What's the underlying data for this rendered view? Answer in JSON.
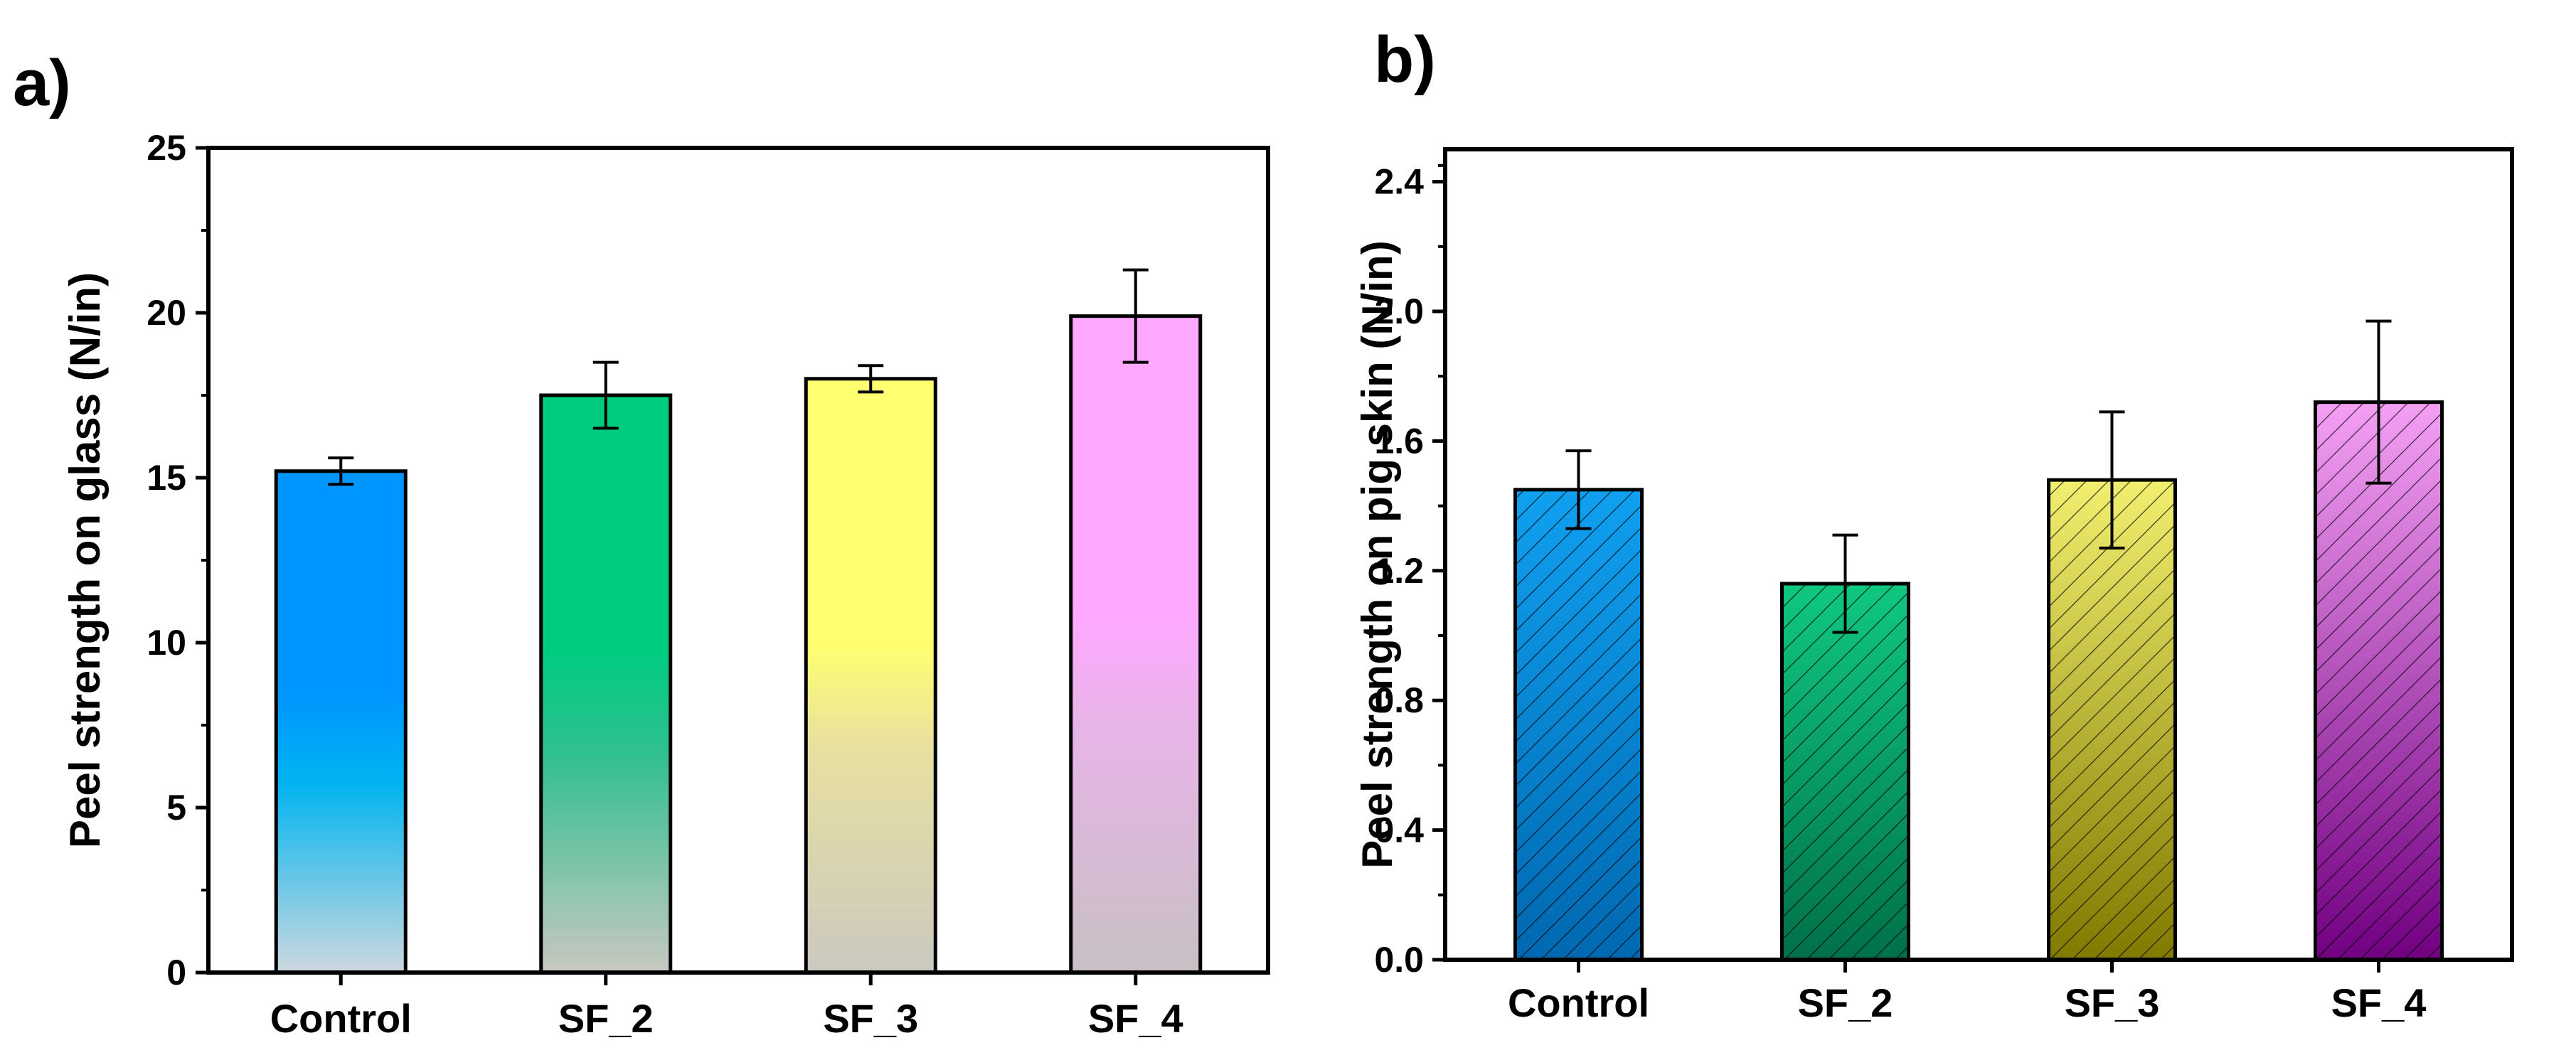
{
  "chart_data": [
    {
      "id": "a",
      "panel_label": "a)",
      "type": "bar",
      "categories": [
        "Control",
        "SF_2",
        "SF_3",
        "SF_4"
      ],
      "values": [
        15.2,
        17.5,
        18.0,
        19.9
      ],
      "errors": [
        0.4,
        1.0,
        0.4,
        1.4
      ],
      "ylabel": "Peel strength on glass (N/in)",
      "xlabel": "",
      "ylim": [
        0,
        25
      ],
      "yticks": [
        0,
        5,
        10,
        15,
        20,
        25
      ],
      "ytick_labels": [
        "0",
        "5",
        "10",
        "15",
        "20",
        "25"
      ],
      "hatched": false,
      "bar_colors": [
        {
          "top": "#0096ff",
          "mid": "#00b4f0",
          "bottom": "#cdd8df"
        },
        {
          "top": "#00cc80",
          "mid": "#30c090",
          "bottom": "#c8c8c0"
        },
        {
          "top": "#ffff70",
          "mid": "#e8e0a0",
          "bottom": "#cbc8c0"
        },
        {
          "top": "#ffa8ff",
          "mid": "#e8b4e8",
          "bottom": "#c8c0c4"
        }
      ]
    },
    {
      "id": "b",
      "panel_label": "b)",
      "type": "bar",
      "categories": [
        "Control",
        "SF_2",
        "SF_3",
        "SF_4"
      ],
      "values": [
        1.45,
        1.16,
        1.48,
        1.72
      ],
      "errors": [
        0.12,
        0.15,
        0.21,
        0.25
      ],
      "ylabel": "Peel strength on pig skin (N/in)",
      "xlabel": "",
      "ylim": [
        0,
        2.5
      ],
      "yticks": [
        0.0,
        0.4,
        0.8,
        1.2,
        1.6,
        2.0,
        2.4
      ],
      "ytick_labels": [
        "0.0",
        "0.4",
        "0.8",
        "1.2",
        "1.6",
        "2.0",
        "2.4"
      ],
      "hatched": true,
      "bar_colors": [
        {
          "top": "#10a0f0",
          "bottom": "#0068b0"
        },
        {
          "top": "#10c880",
          "bottom": "#00704a"
        },
        {
          "top": "#f2ef70",
          "bottom": "#807a00"
        },
        {
          "top": "#f4a0f4",
          "bottom": "#700080"
        }
      ]
    }
  ]
}
